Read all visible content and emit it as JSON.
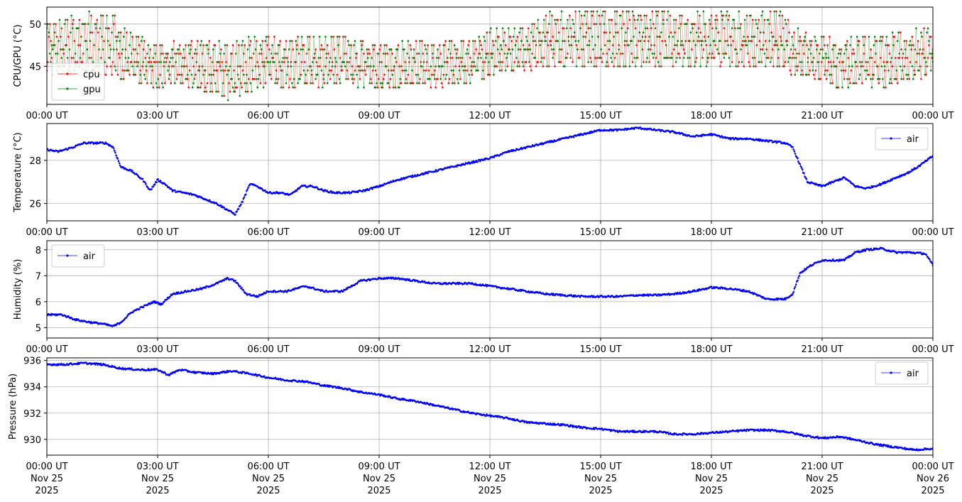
{
  "chart_data": [
    {
      "type": "line",
      "ylabel": "CPU/GPU (°C)",
      "ylim": [
        40.5,
        52
      ],
      "yticks": [
        45,
        50
      ],
      "xlim": [
        0,
        24
      ],
      "xticks": [
        0,
        3,
        6,
        9,
        12,
        15,
        18,
        21,
        24
      ],
      "xtick_labels": [
        "00:00 UT",
        "03:00 UT",
        "06:00 UT",
        "09:00 UT",
        "12:00 UT",
        "15:00 UT",
        "18:00 UT",
        "21:00 UT",
        "00:00 UT"
      ],
      "grid": true,
      "legend": "lower-left",
      "series": [
        {
          "name": "cpu",
          "color": "#ff0000",
          "x": [
            0,
            0.5,
            1,
            1.5,
            1.9,
            2,
            2.5,
            3,
            3.5,
            4,
            4.5,
            5,
            5.5,
            6,
            6.5,
            7,
            7.5,
            8,
            8.5,
            9,
            9.5,
            10,
            10.5,
            11,
            11.5,
            12,
            12.5,
            13,
            13.5,
            14,
            14.5,
            15,
            15.5,
            16,
            16.5,
            17,
            17.5,
            18,
            18.5,
            19,
            19.5,
            20,
            20.2,
            20.5,
            21,
            21.5,
            22,
            22.5,
            23,
            23.5,
            24
          ],
          "low": [
            44,
            44,
            44,
            44,
            44,
            43,
            43,
            42.5,
            43,
            42.5,
            42,
            41.5,
            42,
            43,
            42.5,
            43,
            42.5,
            43,
            42.5,
            42.5,
            42.5,
            43,
            42.5,
            43,
            43,
            44,
            44.5,
            44.5,
            45,
            45,
            45,
            45,
            45,
            45,
            45,
            45,
            45,
            45,
            45,
            45,
            45,
            45,
            44,
            44,
            43.5,
            42.5,
            43,
            42.5,
            43,
            43.5,
            44
          ],
          "high": [
            50,
            50.5,
            51,
            51,
            51,
            49,
            48.5,
            47.5,
            48,
            48,
            48,
            47.5,
            48,
            48.5,
            48,
            48.5,
            48.5,
            48.5,
            48,
            47.5,
            48,
            48,
            47.5,
            48,
            48,
            49,
            49,
            49.5,
            51,
            51,
            51.5,
            51.5,
            51.5,
            51.5,
            51.5,
            51,
            51,
            51.5,
            51,
            51,
            51.5,
            51.5,
            49,
            49,
            48.5,
            48,
            48.5,
            48.5,
            49,
            49,
            49.5
          ]
        },
        {
          "name": "gpu",
          "color": "#008000",
          "x": [
            0,
            0.5,
            1,
            1.5,
            1.9,
            2,
            2.5,
            3,
            3.5,
            4,
            4.5,
            5,
            5.5,
            6,
            6.5,
            7,
            7.5,
            8,
            8.5,
            9,
            9.5,
            10,
            10.5,
            11,
            11.5,
            12,
            12.5,
            13,
            13.5,
            14,
            14.5,
            15,
            15.5,
            16,
            16.5,
            17,
            17.5,
            18,
            18.5,
            19,
            19.5,
            20,
            20.2,
            20.5,
            21,
            21.5,
            22,
            22.5,
            23,
            23.5,
            24
          ],
          "low": [
            44.5,
            44.5,
            44.5,
            44.5,
            44.5,
            43.5,
            43,
            42.5,
            43,
            42.5,
            42,
            41,
            42,
            43,
            42.5,
            43,
            42.5,
            43,
            42.5,
            42.5,
            42.5,
            43,
            42.5,
            43,
            43,
            44,
            44.5,
            45,
            45,
            45,
            45,
            45,
            45,
            45,
            45,
            45,
            45,
            45,
            45,
            45,
            45,
            45,
            44,
            44,
            43.5,
            42.5,
            43,
            42.5,
            43,
            43.5,
            44
          ],
          "high": [
            50,
            50.5,
            51.5,
            51,
            51,
            49.5,
            48.5,
            47.5,
            48,
            48,
            48,
            47.5,
            48.5,
            48.5,
            48,
            48.5,
            48.5,
            48.5,
            48,
            47.5,
            48,
            48,
            47.5,
            48,
            48,
            49.5,
            49.5,
            49.5,
            51.5,
            51.5,
            51.5,
            51.5,
            51.5,
            51.5,
            51.5,
            51.5,
            51.5,
            51.5,
            51.5,
            51.5,
            51.5,
            51.5,
            49.5,
            49.5,
            48.5,
            48,
            48.5,
            48.5,
            49,
            49.5,
            49.5
          ]
        }
      ]
    },
    {
      "type": "line",
      "ylabel": "Temperature (°C)",
      "ylim": [
        25.2,
        29.7
      ],
      "yticks": [
        26,
        28
      ],
      "xlim": [
        0,
        24
      ],
      "xticks": [
        0,
        3,
        6,
        9,
        12,
        15,
        18,
        21,
        24
      ],
      "xtick_labels": [
        "00:00 UT",
        "03:00 UT",
        "06:00 UT",
        "09:00 UT",
        "12:00 UT",
        "15:00 UT",
        "18:00 UT",
        "21:00 UT",
        "00:00 UT"
      ],
      "grid": true,
      "legend": "upper-right",
      "series": [
        {
          "name": "air",
          "color": "#0000ff",
          "x": [
            0,
            0.3,
            0.7,
            1,
            1.3,
            1.6,
            1.8,
            2,
            2.3,
            2.6,
            2.8,
            3,
            3.2,
            3.4,
            3.7,
            4,
            4.3,
            4.6,
            4.9,
            5.1,
            5.3,
            5.5,
            5.7,
            6,
            6.3,
            6.6,
            6.9,
            7.2,
            7.5,
            7.8,
            8.2,
            8.6,
            9,
            9.5,
            10,
            10.5,
            11,
            11.5,
            12,
            12.5,
            13,
            13.5,
            14,
            14.5,
            15,
            15.5,
            16,
            16.5,
            17,
            17.5,
            18,
            18.5,
            19,
            19.5,
            20,
            20.2,
            20.4,
            20.6,
            21,
            21.3,
            21.6,
            21.9,
            22.2,
            22.6,
            23,
            23.3,
            23.6,
            24
          ],
          "y": [
            28.5,
            28.4,
            28.6,
            28.8,
            28.8,
            28.8,
            28.6,
            27.7,
            27.5,
            27.1,
            26.6,
            27.1,
            26.9,
            26.6,
            26.5,
            26.4,
            26.2,
            26.0,
            25.7,
            25.5,
            26.1,
            26.9,
            26.8,
            26.5,
            26.5,
            26.4,
            26.8,
            26.8,
            26.6,
            26.5,
            26.5,
            26.6,
            26.8,
            27.1,
            27.3,
            27.5,
            27.7,
            27.9,
            28.1,
            28.4,
            28.6,
            28.8,
            29.0,
            29.2,
            29.4,
            29.4,
            29.5,
            29.4,
            29.3,
            29.1,
            29.2,
            29.0,
            29.0,
            28.9,
            28.8,
            28.6,
            27.8,
            27.0,
            26.8,
            27.0,
            27.2,
            26.8,
            26.7,
            26.9,
            27.2,
            27.4,
            27.7,
            28.2
          ]
        }
      ]
    },
    {
      "type": "line",
      "ylabel": "Humidity (%)",
      "ylim": [
        4.6,
        8.35
      ],
      "yticks": [
        5,
        6,
        7,
        8
      ],
      "xlim": [
        0,
        24
      ],
      "xticks": [
        0,
        3,
        6,
        9,
        12,
        15,
        18,
        21,
        24
      ],
      "xtick_labels": [
        "00:00 UT",
        "03:00 UT",
        "06:00 UT",
        "09:00 UT",
        "12:00 UT",
        "15:00 UT",
        "18:00 UT",
        "21:00 UT",
        "00:00 UT"
      ],
      "grid": true,
      "legend": "upper-left",
      "series": [
        {
          "name": "air",
          "color": "#0000ff",
          "x": [
            0,
            0.4,
            0.8,
            1.2,
            1.5,
            1.8,
            2,
            2.3,
            2.6,
            2.9,
            3.1,
            3.4,
            3.8,
            4.2,
            4.6,
            4.9,
            5.1,
            5.4,
            5.7,
            6,
            6.5,
            7,
            7.5,
            8,
            8.5,
            9,
            9.5,
            10,
            10.5,
            11,
            11.5,
            12,
            12.5,
            13,
            13.5,
            14,
            14.5,
            15,
            15.5,
            16,
            16.5,
            17,
            17.5,
            18,
            18.5,
            19,
            19.5,
            20,
            20.2,
            20.4,
            20.7,
            21,
            21.3,
            21.6,
            21.9,
            22.2,
            22.6,
            23,
            23.4,
            23.8,
            24
          ],
          "y": [
            5.5,
            5.5,
            5.3,
            5.2,
            5.15,
            5.05,
            5.2,
            5.6,
            5.8,
            6.0,
            5.9,
            6.3,
            6.4,
            6.5,
            6.7,
            6.9,
            6.8,
            6.3,
            6.2,
            6.4,
            6.4,
            6.6,
            6.4,
            6.4,
            6.8,
            6.9,
            6.9,
            6.8,
            6.7,
            6.7,
            6.7,
            6.6,
            6.5,
            6.4,
            6.3,
            6.25,
            6.2,
            6.2,
            6.2,
            6.25,
            6.25,
            6.3,
            6.4,
            6.55,
            6.5,
            6.4,
            6.1,
            6.1,
            6.3,
            7.1,
            7.4,
            7.6,
            7.6,
            7.6,
            7.9,
            8.0,
            8.05,
            7.9,
            7.9,
            7.85,
            7.4
          ]
        }
      ]
    },
    {
      "type": "line",
      "ylabel": "Pressure (hPa)",
      "ylim": [
        928.8,
        936.2
      ],
      "yticks": [
        930,
        932,
        934,
        936
      ],
      "xlim": [
        0,
        24
      ],
      "xticks": [
        0,
        3,
        6,
        9,
        12,
        15,
        18,
        21,
        24
      ],
      "xtick_labels": [
        "00:00 UT\nNov 25\n2025",
        "03:00 UT\nNov 25\n2025",
        "06:00 UT\nNov 25\n2025",
        "09:00 UT\nNov 25\n2025",
        "12:00 UT\nNov 25\n2025",
        "15:00 UT\nNov 25\n2025",
        "18:00 UT\nNov 25\n2025",
        "21:00 UT\nNov 25\n2025",
        "00:00 UT\nNov 26\n2025"
      ],
      "grid": true,
      "legend": "upper-right",
      "series": [
        {
          "name": "air",
          "color": "#0000ff",
          "x": [
            0,
            0.5,
            1,
            1.5,
            2,
            2.5,
            3,
            3.3,
            3.6,
            4,
            4.5,
            5,
            5.5,
            6,
            6.5,
            7,
            7.5,
            8,
            8.5,
            9,
            9.5,
            10,
            10.5,
            11,
            11.5,
            12,
            12.5,
            13,
            13.5,
            14,
            14.5,
            15,
            15.5,
            16,
            16.5,
            17,
            17.5,
            18,
            18.5,
            19,
            19.5,
            20,
            20.5,
            21,
            21.5,
            22,
            22.5,
            23,
            23.5,
            24
          ],
          "y": [
            935.7,
            935.7,
            935.8,
            935.7,
            935.4,
            935.3,
            935.3,
            934.9,
            935.3,
            935.1,
            935.0,
            935.2,
            935.0,
            934.7,
            934.5,
            934.4,
            934.1,
            933.9,
            933.6,
            933.4,
            933.1,
            932.9,
            932.6,
            932.3,
            932.0,
            931.8,
            931.6,
            931.3,
            931.2,
            931.1,
            930.9,
            930.8,
            930.6,
            930.6,
            930.6,
            930.4,
            930.4,
            930.5,
            930.6,
            930.7,
            930.7,
            930.6,
            930.3,
            930.1,
            930.2,
            929.9,
            929.6,
            929.4,
            929.2,
            929.3
          ]
        }
      ]
    }
  ]
}
